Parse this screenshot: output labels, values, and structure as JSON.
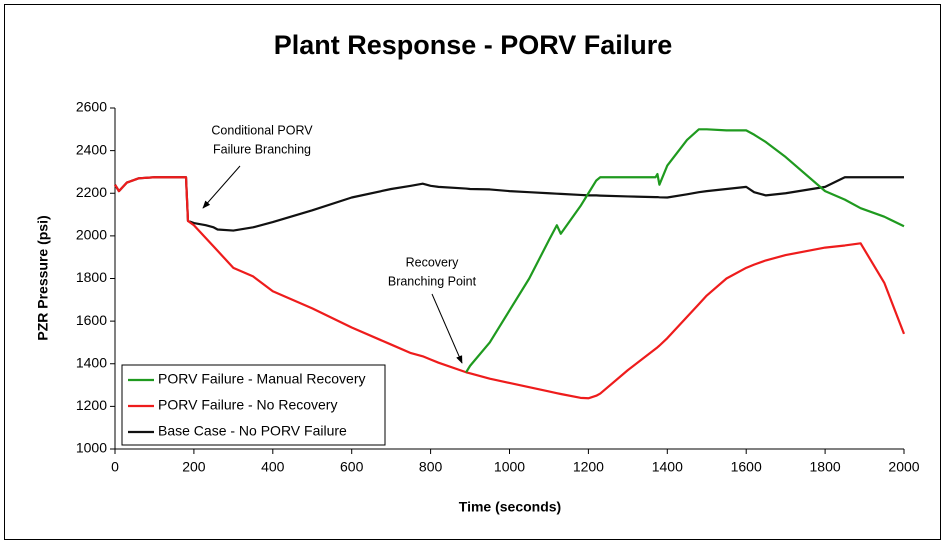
{
  "chart_data": {
    "type": "line",
    "title": "Plant Response - PORV Failure",
    "x_label": "Time (seconds)",
    "y_label": "PZR Pressure (psi)",
    "xlim": [
      0,
      2000
    ],
    "ylim": [
      1000,
      2600
    ],
    "xticks": [
      0,
      200,
      400,
      600,
      800,
      1000,
      1200,
      1400,
      1600,
      1800,
      2000
    ],
    "yticks": [
      1000,
      1200,
      1400,
      1600,
      1800,
      2000,
      2200,
      2400,
      2600
    ],
    "grid": false,
    "legend": "lower left",
    "annotations": [
      {
        "lines": [
          "Conditional PORV",
          "Failure Branching"
        ]
      },
      {
        "lines": [
          "Recovery",
          "Branching Point"
        ]
      }
    ],
    "x": [
      0,
      10,
      30,
      60,
      100,
      180,
      185,
      200,
      230,
      250,
      260,
      300,
      350,
      400,
      500,
      600,
      700,
      750,
      780,
      800,
      820,
      890,
      900,
      950,
      1000,
      1050,
      1100,
      1120,
      1130,
      1180,
      1200,
      1220,
      1230,
      1300,
      1370,
      1375,
      1380,
      1400,
      1450,
      1480,
      1500,
      1550,
      1600,
      1620,
      1650,
      1700,
      1800,
      1850,
      1890,
      1950,
      2000
    ],
    "series": [
      {
        "name": "PORV Failure - Manual Recovery",
        "color": "#1f9a1f",
        "values": [
          null,
          null,
          null,
          null,
          null,
          null,
          null,
          null,
          null,
          null,
          null,
          null,
          null,
          null,
          null,
          null,
          null,
          null,
          null,
          null,
          null,
          1360,
          1390,
          1500,
          1650,
          1800,
          1980,
          2050,
          2010,
          2140,
          2200,
          2260,
          2275,
          2275,
          2275,
          2290,
          2240,
          2330,
          2450,
          2500,
          2500,
          2495,
          2495,
          2475,
          2440,
          2370,
          2210,
          2170,
          2130,
          2090,
          2045
        ]
      },
      {
        "name": "PORV Failure - No Recovery",
        "color": "#ee1c1c",
        "values": [
          2240,
          2210,
          2250,
          2270,
          2275,
          2275,
          2070,
          2050,
          1990,
          1950,
          1930,
          1850,
          1810,
          1740,
          1660,
          1570,
          1490,
          1450,
          1435,
          1420,
          1405,
          1360,
          1355,
          1330,
          1310,
          1290,
          1270,
          1262,
          1258,
          1240,
          1238,
          1250,
          1260,
          1370,
          1470,
          1477,
          1485,
          1520,
          1620,
          1680,
          1720,
          1800,
          1850,
          1865,
          1885,
          1910,
          1945,
          1955,
          1965,
          1780,
          1540
        ]
      },
      {
        "name": "Base Case - No PORV Failure",
        "color": "#111111",
        "values": [
          2240,
          2210,
          2250,
          2270,
          2275,
          2275,
          2070,
          2060,
          2050,
          2040,
          2030,
          2025,
          2040,
          2065,
          2120,
          2180,
          2220,
          2235,
          2245,
          2235,
          2230,
          2222,
          2220,
          2218,
          2210,
          2205,
          2200,
          2198,
          2197,
          2192,
          2190,
          2190,
          2189,
          2185,
          2182,
          2182,
          2181,
          2180,
          2195,
          2205,
          2210,
          2220,
          2230,
          2205,
          2190,
          2200,
          2230,
          2275,
          2275,
          2275,
          2275
        ]
      }
    ]
  }
}
